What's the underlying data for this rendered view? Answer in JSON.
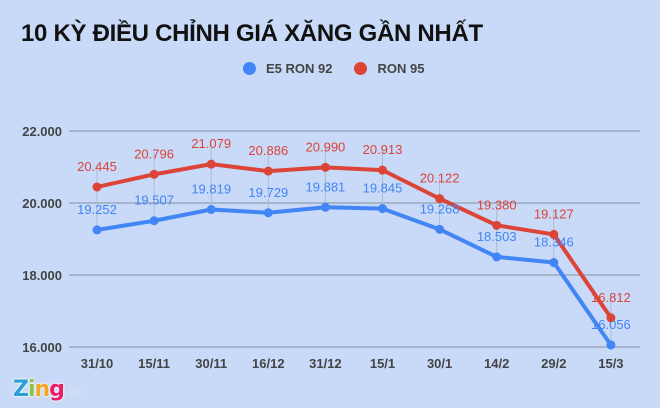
{
  "header": {
    "title": "10 KỲ ĐIỀU CHỈNH GIÁ XĂNG GẦN NHẤT"
  },
  "legend": [
    {
      "label": "E5 RON 92",
      "color": "#4285f4"
    },
    {
      "label": "RON 95",
      "color": "#db4437"
    }
  ],
  "logo": {
    "brand": "Zing",
    "suffix": ".vn"
  },
  "chart_data": {
    "type": "line",
    "title": "10 KỲ ĐIỀU CHỈNH GIÁ XĂNG GẦN NHẤT",
    "xlabel": "",
    "ylabel": "",
    "categories": [
      "31/10",
      "15/11",
      "30/11",
      "16/12",
      "31/12",
      "15/1",
      "30/1",
      "14/2",
      "29/2",
      "15/3"
    ],
    "series": [
      {
        "name": "E5 RON 92",
        "color": "#4285f4",
        "values": [
          19252,
          19507,
          19819,
          19729,
          19881,
          19845,
          19268,
          18503,
          18346,
          16056
        ],
        "labels": [
          "19.252",
          "19.507",
          "19.819",
          "19.729",
          "19.881",
          "19.845",
          "19.268",
          "18.503",
          "18.346",
          "16.056"
        ]
      },
      {
        "name": "RON 95",
        "color": "#db4437",
        "values": [
          20445,
          20796,
          21079,
          20886,
          20990,
          20913,
          20122,
          19380,
          19127,
          16812
        ],
        "labels": [
          "20.445",
          "20.796",
          "21.079",
          "20.886",
          "20.990",
          "20.913",
          "20.122",
          "19.380",
          "19.127",
          "16.812"
        ]
      }
    ],
    "yticks": [
      16000,
      18000,
      20000,
      22000
    ],
    "ytick_labels": [
      "16.000",
      "18.000",
      "20.000",
      "22.000"
    ],
    "ylim": [
      16000,
      22000
    ],
    "grid": true,
    "legend_position": "top"
  }
}
